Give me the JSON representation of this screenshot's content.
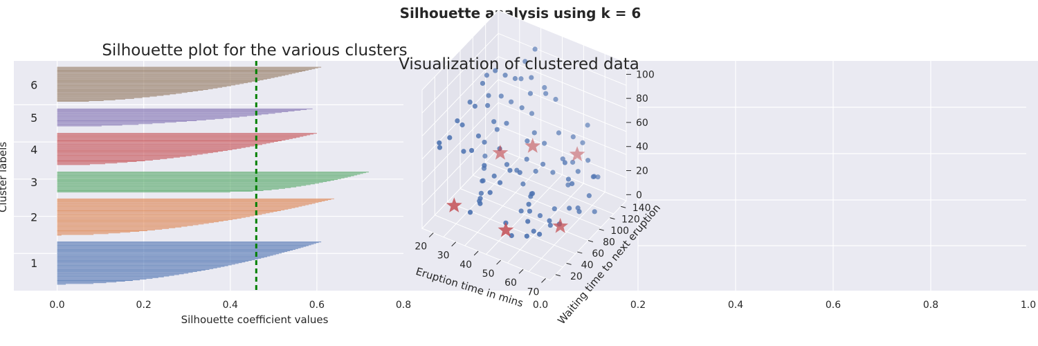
{
  "figure": {
    "suptitle": "Silhouette analysis using k = 6"
  },
  "chart_data": [
    {
      "type": "bar",
      "orientation": "horizontal",
      "title": "Silhouette plot for the various clusters",
      "xlabel": "Silhouette coefficient values",
      "ylabel": "Cluster labels",
      "xlim": [
        -0.1,
        0.8
      ],
      "xticks": [
        "0.0",
        "0.2",
        "0.4",
        "0.6",
        "0.8"
      ],
      "grid": true,
      "average_silhouette_line": 0.46,
      "average_line_color": "#008000",
      "clusters": [
        {
          "label": "1",
          "size": 58,
          "max": 0.61,
          "min": 0.02,
          "color": "#4c72b0"
        },
        {
          "label": "2",
          "size": 50,
          "max": 0.64,
          "min": 0.01,
          "color": "#dd8452"
        },
        {
          "label": "3",
          "size": 28,
          "max": 0.72,
          "min": 0.4,
          "color": "#55a868"
        },
        {
          "label": "4",
          "size": 44,
          "max": 0.6,
          "min": 0.0,
          "color": "#c44e52"
        },
        {
          "label": "5",
          "size": 25,
          "max": 0.59,
          "min": 0.0,
          "color": "#8172b3"
        },
        {
          "label": "6",
          "size": 48,
          "max": 0.61,
          "min": 0.0,
          "color": "#937860"
        }
      ]
    },
    {
      "type": "scatter3d",
      "title": "Visualization of clustered data",
      "xlabel": "Eruption time in mins",
      "ylabel": "Waiting time to next eruption",
      "zlabel": "",
      "xticks": [
        "20",
        "30",
        "40",
        "50",
        "60",
        "70"
      ],
      "yticks": [
        "20",
        "40",
        "60",
        "80",
        "100",
        "120",
        "140"
      ],
      "zticks": [
        "0",
        "20",
        "40",
        "60",
        "80",
        "100"
      ],
      "xlim": [
        15,
        72
      ],
      "ylim": [
        10,
        150
      ],
      "zlim": [
        -5,
        110
      ],
      "point_color": "#4c72b0",
      "centroid_color": "#c44e52",
      "points": [
        [
          20,
          40,
          60
        ],
        [
          22,
          55,
          65
        ],
        [
          24,
          70,
          75
        ],
        [
          18,
          30,
          55
        ],
        [
          26,
          85,
          70
        ],
        [
          25,
          45,
          50
        ],
        [
          28,
          60,
          58
        ],
        [
          30,
          80,
          62
        ],
        [
          32,
          95,
          55
        ],
        [
          21,
          50,
          70
        ],
        [
          23,
          65,
          80
        ],
        [
          27,
          75,
          45
        ],
        [
          29,
          90,
          50
        ],
        [
          31,
          35,
          60
        ],
        [
          33,
          50,
          42
        ],
        [
          35,
          70,
          48
        ],
        [
          19,
          25,
          62
        ],
        [
          24,
          95,
          72
        ],
        [
          26,
          110,
          66
        ],
        [
          28,
          120,
          58
        ],
        [
          30,
          130,
          74
        ],
        [
          22,
          100,
          85
        ],
        [
          34,
          115,
          60
        ],
        [
          36,
          125,
          52
        ],
        [
          38,
          140,
          68
        ],
        [
          40,
          100,
          44
        ],
        [
          25,
          80,
          90
        ],
        [
          27,
          95,
          95
        ],
        [
          29,
          105,
          88
        ],
        [
          31,
          115,
          82
        ],
        [
          33,
          125,
          93
        ],
        [
          35,
          135,
          100
        ],
        [
          37,
          120,
          85
        ],
        [
          39,
          110,
          78
        ],
        [
          41,
          130,
          70
        ],
        [
          43,
          140,
          62
        ],
        [
          45,
          95,
          25
        ],
        [
          47,
          100,
          30
        ],
        [
          49,
          110,
          20
        ],
        [
          51,
          120,
          28
        ],
        [
          53,
          130,
          22
        ],
        [
          55,
          140,
          35
        ],
        [
          57,
          105,
          18
        ],
        [
          59,
          115,
          26
        ],
        [
          61,
          125,
          32
        ],
        [
          63,
          135,
          15
        ],
        [
          65,
          120,
          24
        ],
        [
          67,
          110,
          30
        ],
        [
          46,
          85,
          12
        ],
        [
          48,
          75,
          18
        ],
        [
          50,
          65,
          22
        ],
        [
          52,
          55,
          16
        ],
        [
          54,
          45,
          28
        ],
        [
          56,
          35,
          20
        ],
        [
          58,
          25,
          14
        ],
        [
          60,
          40,
          10
        ],
        [
          62,
          50,
          18
        ],
        [
          64,
          60,
          12
        ],
        [
          66,
          70,
          22
        ],
        [
          68,
          80,
          16
        ],
        [
          70,
          90,
          26
        ],
        [
          44,
          70,
          35
        ],
        [
          42,
          60,
          40
        ],
        [
          40,
          50,
          33
        ],
        [
          38,
          40,
          28
        ],
        [
          36,
          30,
          22
        ],
        [
          34,
          20,
          18
        ],
        [
          32,
          45,
          14
        ],
        [
          30,
          55,
          10
        ],
        [
          28,
          65,
          8
        ],
        [
          26,
          75,
          12
        ],
        [
          24,
          85,
          6
        ],
        [
          22,
          95,
          10
        ],
        [
          20,
          105,
          14
        ],
        [
          45,
          40,
          8
        ],
        [
          50,
          30,
          6
        ],
        [
          55,
          50,
          4
        ],
        [
          60,
          60,
          8
        ],
        [
          65,
          90,
          12
        ],
        [
          70,
          100,
          8
        ],
        [
          48,
          125,
          45
        ],
        [
          52,
          135,
          40
        ],
        [
          56,
          145,
          48
        ],
        [
          44,
          115,
          38
        ],
        [
          42,
          105,
          50
        ],
        [
          58,
          95,
          42
        ],
        [
          62,
          85,
          36
        ],
        [
          66,
          75,
          40
        ],
        [
          35,
          60,
          30
        ],
        [
          37,
          75,
          34
        ],
        [
          39,
          85,
          26
        ],
        [
          41,
          95,
          32
        ],
        [
          43,
          80,
          20
        ],
        [
          47,
          60,
          10
        ],
        [
          53,
          70,
          6
        ],
        [
          57,
          80,
          10
        ]
      ],
      "centroids": [
        [
          22,
          40,
          5
        ],
        [
          45,
          40,
          2
        ],
        [
          62,
          70,
          4
        ],
        [
          28,
          100,
          25
        ],
        [
          40,
          110,
          35
        ],
        [
          55,
          130,
          30
        ]
      ]
    }
  ]
}
